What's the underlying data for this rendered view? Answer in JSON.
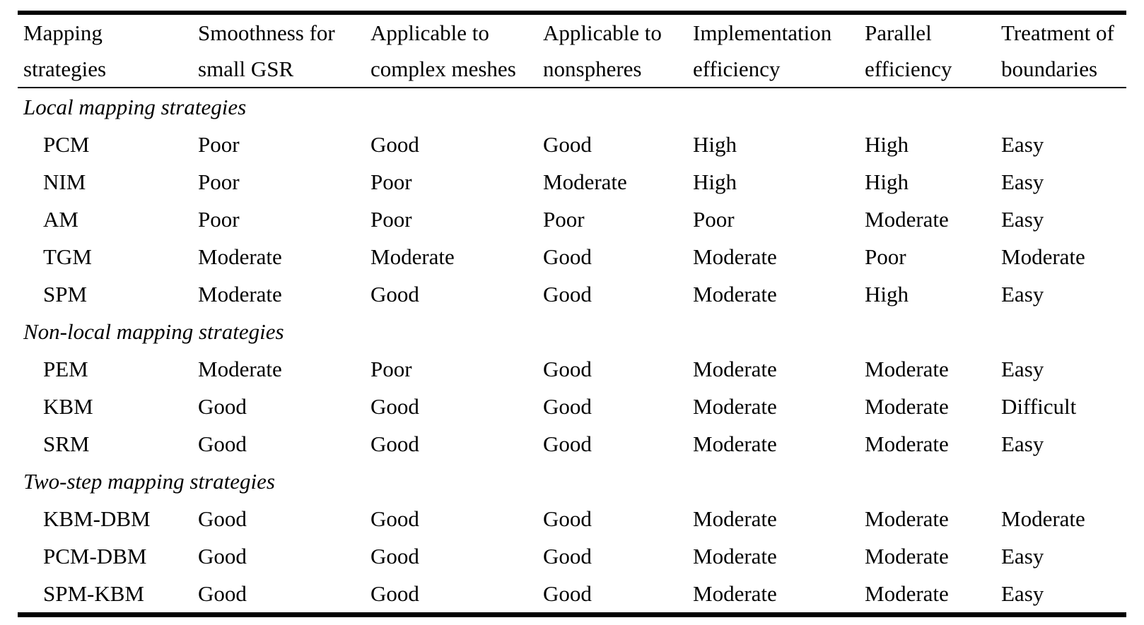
{
  "table": {
    "columns": [
      {
        "line1": "Mapping",
        "line2": "strategies"
      },
      {
        "line1": "Smoothness for",
        "line2": "small GSR"
      },
      {
        "line1": "Applicable to",
        "line2": "complex meshes"
      },
      {
        "line1": "Applicable to",
        "line2": "nonspheres"
      },
      {
        "line1": "Implementation",
        "line2": "efficiency"
      },
      {
        "line1": "Parallel",
        "line2": "efficiency"
      },
      {
        "line1": "Treatment of",
        "line2": "boundaries"
      }
    ],
    "sections": [
      {
        "title": "Local mapping strategies",
        "rows": [
          {
            "name": "PCM",
            "values": [
              "Poor",
              "Good",
              "Good",
              "High",
              "High",
              "Easy"
            ]
          },
          {
            "name": "NIM",
            "values": [
              "Poor",
              "Poor",
              "Moderate",
              "High",
              "High",
              "Easy"
            ]
          },
          {
            "name": "AM",
            "values": [
              "Poor",
              "Poor",
              "Poor",
              "Poor",
              "Moderate",
              "Easy"
            ]
          },
          {
            "name": "TGM",
            "values": [
              "Moderate",
              "Moderate",
              "Good",
              "Moderate",
              "Poor",
              "Moderate"
            ]
          },
          {
            "name": "SPM",
            "values": [
              "Moderate",
              "Good",
              "Good",
              "Moderate",
              "High",
              "Easy"
            ]
          }
        ]
      },
      {
        "title": "Non-local mapping strategies",
        "rows": [
          {
            "name": "PEM",
            "values": [
              "Moderate",
              "Poor",
              "Good",
              "Moderate",
              "Moderate",
              "Easy"
            ]
          },
          {
            "name": "KBM",
            "values": [
              "Good",
              "Good",
              "Good",
              "Moderate",
              "Moderate",
              "Difficult"
            ]
          },
          {
            "name": "SRM",
            "values": [
              "Good",
              "Good",
              "Good",
              "Moderate",
              "Moderate",
              "Easy"
            ]
          }
        ]
      },
      {
        "title": "Two-step mapping strategies",
        "rows": [
          {
            "name": "KBM-DBM",
            "values": [
              "Good",
              "Good",
              "Good",
              "Moderate",
              "Moderate",
              "Moderate"
            ]
          },
          {
            "name": "PCM-DBM",
            "values": [
              "Good",
              "Good",
              "Good",
              "Moderate",
              "Moderate",
              "Easy"
            ]
          },
          {
            "name": "SPM-KBM",
            "values": [
              "Good",
              "Good",
              "Good",
              "Moderate",
              "Moderate",
              "Easy"
            ]
          }
        ]
      }
    ]
  }
}
